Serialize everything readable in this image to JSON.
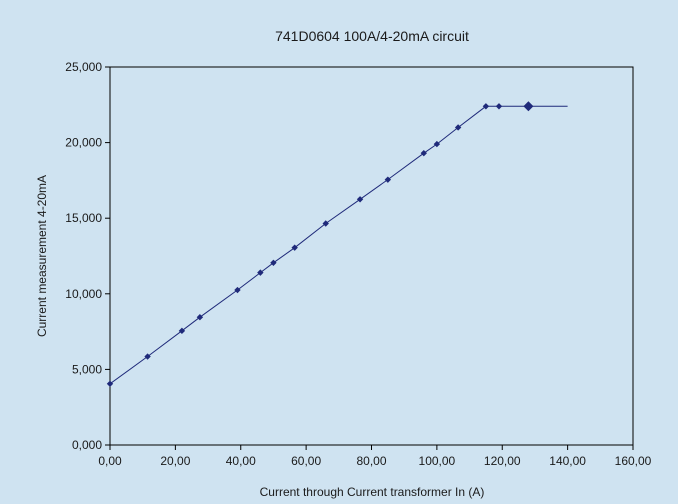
{
  "chart_data": {
    "type": "scatter",
    "title": "741D0604 100A/4-20mA circuit",
    "xlabel": "Current through Current transformer In (A)",
    "ylabel": "Current measurement 4-20mA",
    "xlim": [
      0,
      160
    ],
    "ylim": [
      0,
      25
    ],
    "x_tick_labels": [
      "0,00",
      "20,00",
      "40,00",
      "60,00",
      "80,00",
      "100,00",
      "120,00",
      "140,00",
      "160,00"
    ],
    "y_tick_labels": [
      "0,000",
      "5,000",
      "10,000",
      "15,000",
      "20,000",
      "25,000"
    ],
    "x_ticks": [
      0,
      20,
      40,
      60,
      80,
      100,
      120,
      140,
      160
    ],
    "y_ticks": [
      0,
      5,
      10,
      15,
      20,
      25
    ],
    "grid": "horizontal",
    "legend": "none",
    "series": [
      {
        "line_and_markers": true,
        "x": [
          0,
          11.5,
          22,
          27.5,
          39,
          46,
          50,
          56.5,
          66,
          76.5,
          85,
          96,
          100,
          106.5,
          115,
          119,
          128
        ],
        "y": [
          4.05,
          5.85,
          7.55,
          8.45,
          10.25,
          11.4,
          12.05,
          13.05,
          14.65,
          16.25,
          17.55,
          19.3,
          19.9,
          21.0,
          22.4,
          22.4,
          22.4
        ],
        "line_extends_to_x": 140,
        "highlight_point_x": 128
      }
    ],
    "colors": {
      "background": "#cfe3f1",
      "plot_area": "#cfe3f1",
      "grid": "#000000",
      "series": "#1f2a7a"
    }
  }
}
